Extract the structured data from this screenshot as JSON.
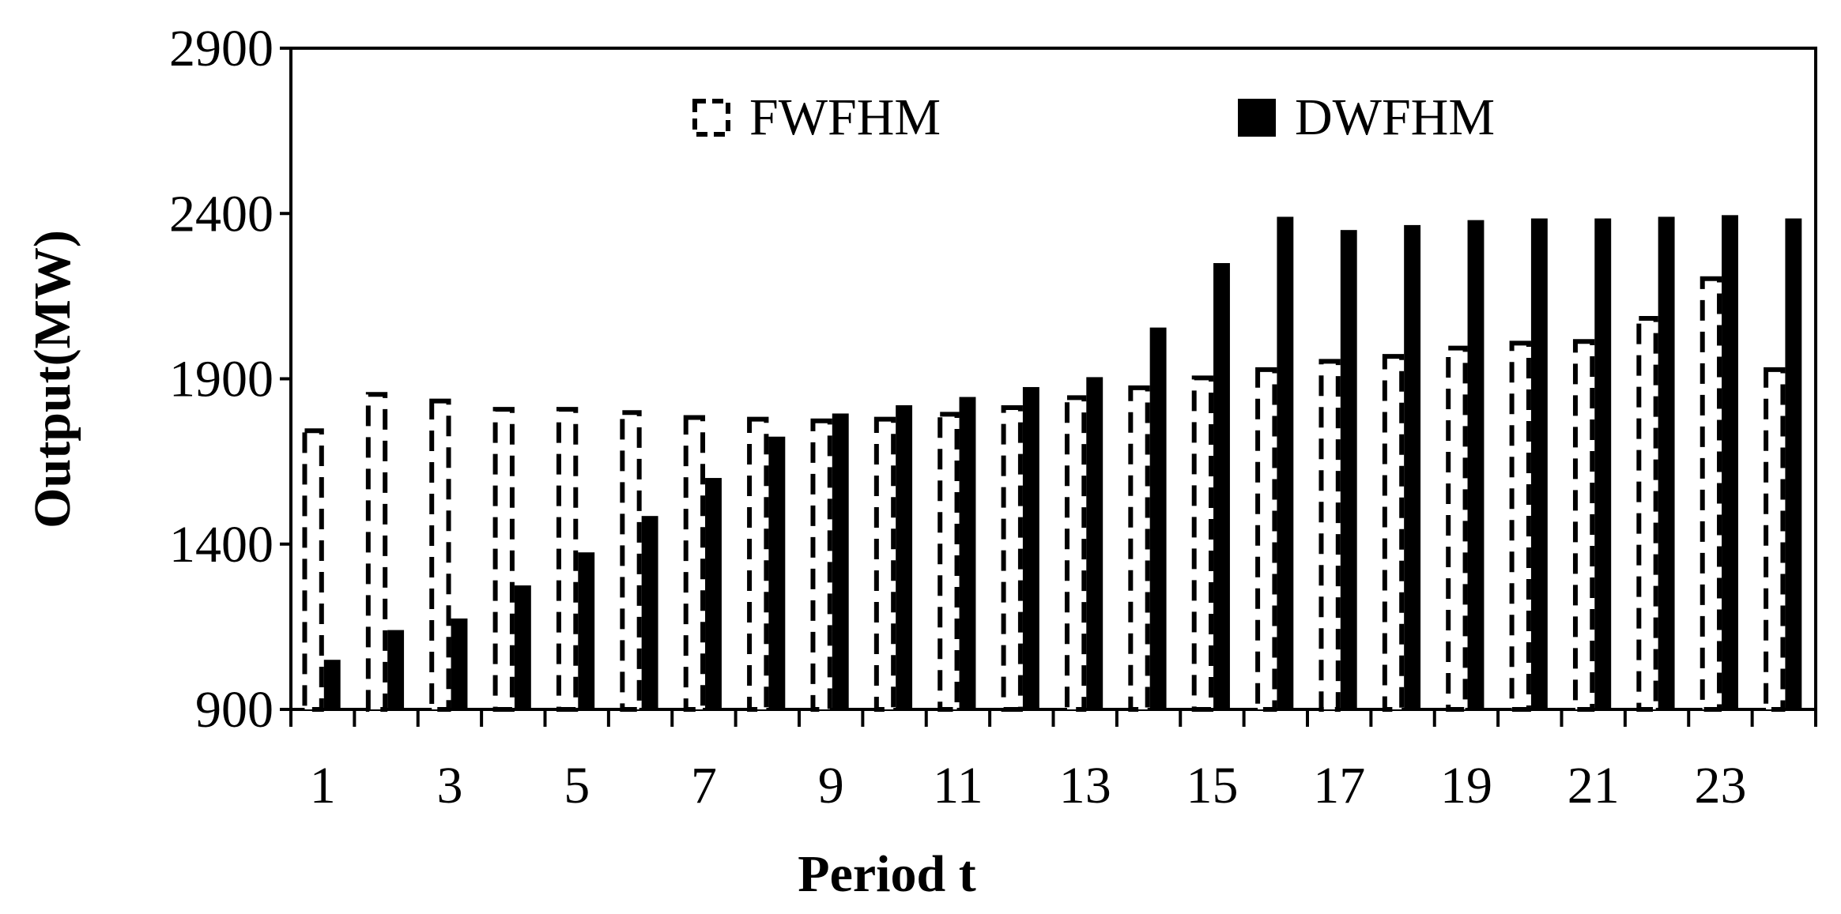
{
  "chart_data": {
    "type": "bar",
    "x_label": "Period t",
    "y_label": "Output(MW)",
    "categories": [
      "1",
      null,
      "3",
      null,
      "5",
      null,
      "7",
      null,
      "9",
      null,
      "11",
      null,
      "13",
      null,
      "15",
      null,
      "17",
      null,
      "19",
      null,
      "21",
      null,
      "23",
      null
    ],
    "series": [
      {
        "name": "FWFHM",
        "color": "#000000",
        "style": "dashed",
        "values": [
          1750,
          1860,
          1840,
          1815,
          1815,
          1805,
          1790,
          1785,
          1780,
          1785,
          1800,
          1820,
          1850,
          1880,
          1910,
          1935,
          1960,
          1975,
          2000,
          2015,
          2020,
          2090,
          2210,
          1935
        ]
      },
      {
        "name": "DWFHM",
        "color": "#000000",
        "style": "solid",
        "values": [
          1050,
          1140,
          1175,
          1275,
          1375,
          1485,
          1600,
          1725,
          1795,
          1820,
          1845,
          1875,
          1905,
          2055,
          2250,
          2390,
          2350,
          2365,
          2380,
          2385,
          2385,
          2390,
          2395,
          2385
        ]
      }
    ],
    "ylim": [
      900,
      2900
    ],
    "yticks": [
      900,
      1400,
      1900,
      2400,
      2900
    ]
  }
}
